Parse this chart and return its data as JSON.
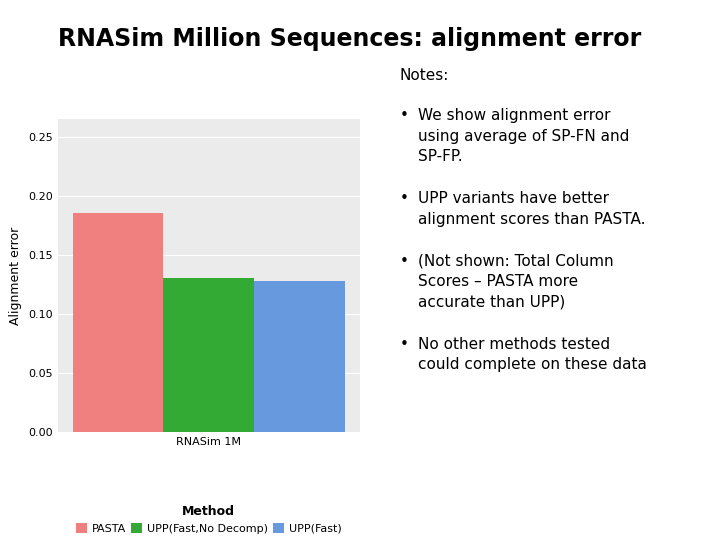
{
  "title": "RNASim Million Sequences: alignment error",
  "title_fontsize": 17,
  "title_fontweight": "bold",
  "title_ha": "left",
  "categories": [
    "RNASim 1M"
  ],
  "methods": [
    "PASTA",
    "UPP(Fast,No Decomp)",
    "UPP(Fast)"
  ],
  "values": [
    0.185,
    0.13,
    0.128
  ],
  "bar_colors": [
    "#F08080",
    "#33AA33",
    "#6699DD"
  ],
  "bar_width": 0.9,
  "ylabel": "Alignment error",
  "xlabel": "RNASim 1M",
  "ylim": [
    0,
    0.265
  ],
  "yticks": [
    0.0,
    0.05,
    0.1,
    0.15,
    0.2,
    0.25
  ],
  "notes_title": "Notes:",
  "notes": [
    "We show alignment error\nusing average of SP-FN and\nSP-FP.",
    "UPP variants have better\nalignment scores than PASTA.",
    "(Not shown: Total Column\nScores – PASTA more\naccurate than UPP)",
    "No other methods tested\ncould complete on these data"
  ],
  "background_color": "#ffffff",
  "plot_bg_color": "#EBEBEB",
  "grid_color": "#ffffff",
  "notes_fontsize": 11,
  "notes_title_fontsize": 11,
  "legend_title": "Method",
  "legend_title_fontweight": "bold",
  "axis_label_fontsize": 9,
  "tick_fontsize": 8
}
